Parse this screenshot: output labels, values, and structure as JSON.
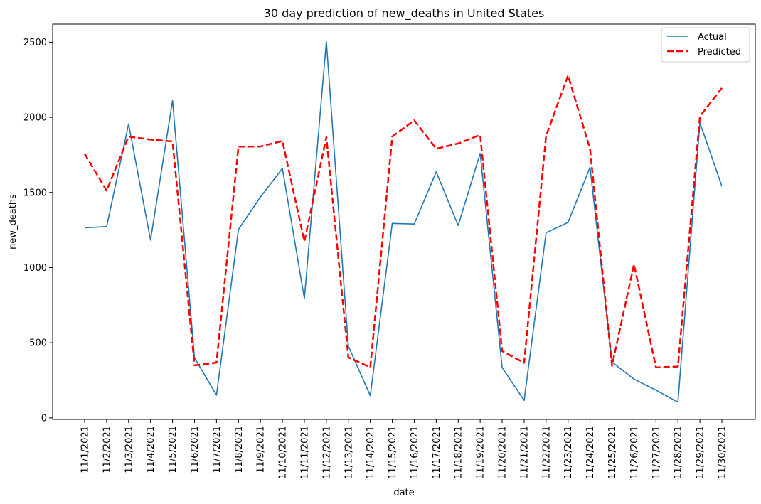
{
  "chart_data": {
    "type": "line",
    "title": "30 day prediction of new_deaths in United States",
    "xlabel": "date",
    "ylabel": "new_deaths",
    "categories": [
      "11/1/2021",
      "11/2/2021",
      "11/3/2021",
      "11/4/2021",
      "11/5/2021",
      "11/6/2021",
      "11/7/2021",
      "11/8/2021",
      "11/9/2021",
      "11/10/2021",
      "11/11/2021",
      "11/12/2021",
      "11/13/2021",
      "11/14/2021",
      "11/15/2021",
      "11/16/2021",
      "11/17/2021",
      "11/18/2021",
      "11/19/2021",
      "11/20/2021",
      "11/21/2021",
      "11/22/2021",
      "11/23/2021",
      "11/24/2021",
      "11/25/2021",
      "11/26/2021",
      "11/27/2021",
      "11/28/2021",
      "11/29/2021",
      "11/30/2021"
    ],
    "yticks": [
      0,
      500,
      1000,
      1500,
      2000,
      2500
    ],
    "ylim": [
      -10,
      2620
    ],
    "grid": false,
    "legend_position": "top-right",
    "series": [
      {
        "name": "Actual",
        "color": "#1f77b4",
        "style": "solid",
        "values": [
          1265,
          1273,
          1955,
          1183,
          2112,
          400,
          152,
          1254,
          1470,
          1660,
          794,
          2505,
          478,
          148,
          1294,
          1290,
          1637,
          1280,
          1760,
          335,
          117,
          1232,
          1301,
          1667,
          372,
          258,
          185,
          105,
          1965,
          1541
        ]
      },
      {
        "name": "Predicted",
        "color": "#ff0000",
        "style": "dashed",
        "values": [
          1758,
          1512,
          1872,
          1852,
          1840,
          350,
          368,
          1805,
          1806,
          1843,
          1175,
          1868,
          403,
          337,
          1872,
          1980,
          1791,
          1826,
          1883,
          445,
          367,
          1877,
          2278,
          1790,
          348,
          1022,
          336,
          342,
          2007,
          2195
        ]
      }
    ]
  }
}
